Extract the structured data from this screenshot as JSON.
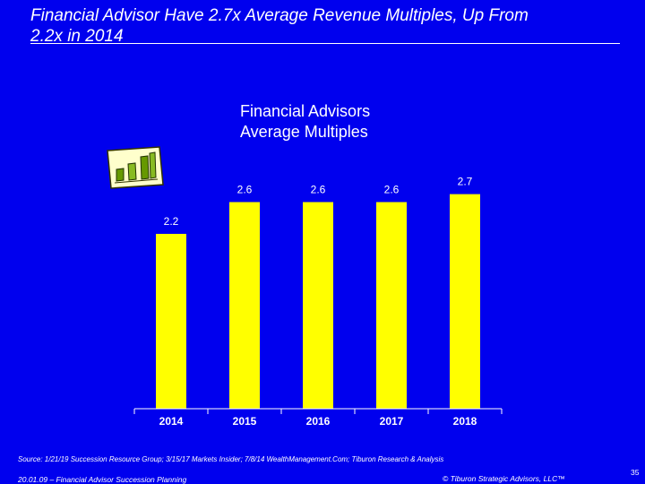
{
  "slide": {
    "title_line1": "Financial Advisor Have 2.7x Average Revenue Multiples, Up From",
    "title_line2": "2.2x in 2014",
    "source": "Source: 1/21/19 Succession Resource Group; 3/15/17 Markets Insider; 7/8/14 WealthManagement.Com; Tiburon Research & Analysis",
    "footer_left": "20.01.09 – Financial Advisor Succession Planning",
    "footer_right": "© Tiburon Strategic Advisors, LLC™",
    "page_number": "35",
    "clipart_icon": "bar-chart-clipart-icon"
  },
  "colors": {
    "background": "#0000ee",
    "bar": "#ffff00",
    "text": "#ffffff"
  },
  "chart_data": {
    "type": "bar",
    "title_line1": "Financial Advisors",
    "title_line2": "Average Multiples",
    "categories": [
      "2014",
      "2015",
      "2016",
      "2017",
      "2018"
    ],
    "values": [
      2.2,
      2.6,
      2.6,
      2.6,
      2.7
    ],
    "data_labels": [
      "2.2",
      "2.6",
      "2.6",
      "2.6",
      "2.7"
    ],
    "xlabel": "",
    "ylabel": "",
    "ylim": [
      0,
      3.0
    ],
    "grid": false,
    "legend": "none"
  }
}
